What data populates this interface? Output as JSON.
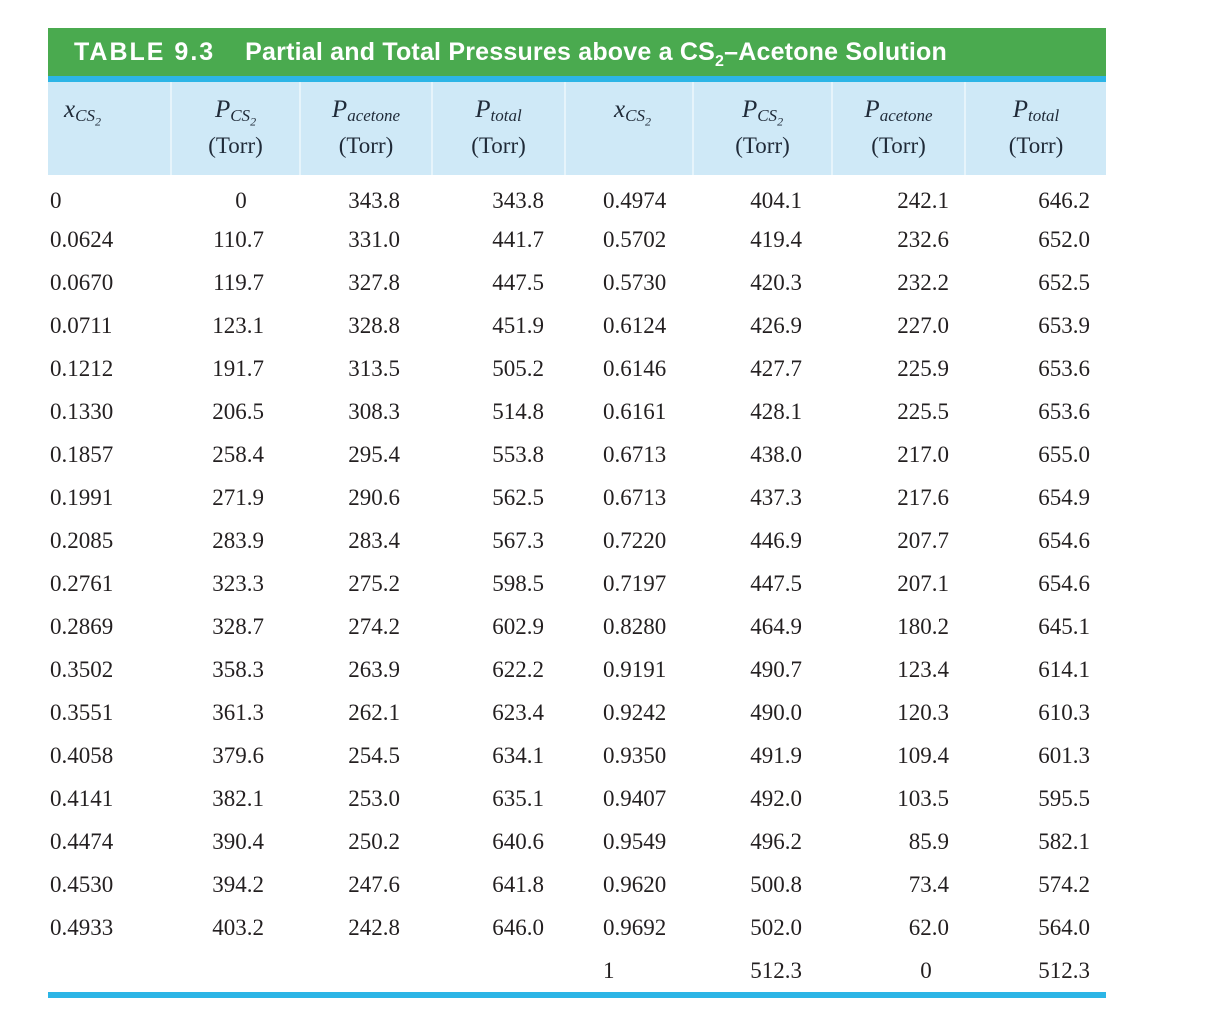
{
  "table": {
    "label": "TABLE 9.3",
    "title_pre": "Partial and Total Pressures above a CS",
    "title_sub": "2",
    "title_post": "–Acetone Solution",
    "columns": [
      {
        "var": "x",
        "sub": "CS",
        "subsub": "2",
        "unit": ""
      },
      {
        "var": "P",
        "sub": "CS",
        "subsub": "2",
        "unit": "(Torr)"
      },
      {
        "var": "P",
        "sub": "acetone",
        "subsub": "",
        "unit": "(Torr)"
      },
      {
        "var": "P",
        "sub": "total",
        "subsub": "",
        "unit": "(Torr)"
      },
      {
        "var": "x",
        "sub": "CS",
        "subsub": "2",
        "unit": ""
      },
      {
        "var": "P",
        "sub": "CS",
        "subsub": "2",
        "unit": "(Torr)"
      },
      {
        "var": "P",
        "sub": "acetone",
        "subsub": "",
        "unit": "(Torr)"
      },
      {
        "var": "P",
        "sub": "total",
        "subsub": "",
        "unit": "(Torr)"
      }
    ],
    "rows": [
      [
        "0",
        "0",
        "343.8",
        "343.8",
        "0.4974",
        "404.1",
        "242.1",
        "646.2"
      ],
      [
        "0.0624",
        "110.7",
        "331.0",
        "441.7",
        "0.5702",
        "419.4",
        "232.6",
        "652.0"
      ],
      [
        "0.0670",
        "119.7",
        "327.8",
        "447.5",
        "0.5730",
        "420.3",
        "232.2",
        "652.5"
      ],
      [
        "0.0711",
        "123.1",
        "328.8",
        "451.9",
        "0.6124",
        "426.9",
        "227.0",
        "653.9"
      ],
      [
        "0.1212",
        "191.7",
        "313.5",
        "505.2",
        "0.6146",
        "427.7",
        "225.9",
        "653.6"
      ],
      [
        "0.1330",
        "206.5",
        "308.3",
        "514.8",
        "0.6161",
        "428.1",
        "225.5",
        "653.6"
      ],
      [
        "0.1857",
        "258.4",
        "295.4",
        "553.8",
        "0.6713",
        "438.0",
        "217.0",
        "655.0"
      ],
      [
        "0.1991",
        "271.9",
        "290.6",
        "562.5",
        "0.6713",
        "437.3",
        "217.6",
        "654.9"
      ],
      [
        "0.2085",
        "283.9",
        "283.4",
        "567.3",
        "0.7220",
        "446.9",
        "207.7",
        "654.6"
      ],
      [
        "0.2761",
        "323.3",
        "275.2",
        "598.5",
        "0.7197",
        "447.5",
        "207.1",
        "654.6"
      ],
      [
        "0.2869",
        "328.7",
        "274.2",
        "602.9",
        "0.8280",
        "464.9",
        "180.2",
        "645.1"
      ],
      [
        "0.3502",
        "358.3",
        "263.9",
        "622.2",
        "0.9191",
        "490.7",
        "123.4",
        "614.1"
      ],
      [
        "0.3551",
        "361.3",
        "262.1",
        "623.4",
        "0.9242",
        "490.0",
        "120.3",
        "610.3"
      ],
      [
        "0.4058",
        "379.6",
        "254.5",
        "634.1",
        "0.9350",
        "491.9",
        "109.4",
        "601.3"
      ],
      [
        "0.4141",
        "382.1",
        "253.0",
        "635.1",
        "0.9407",
        "492.0",
        "103.5",
        "595.5"
      ],
      [
        "0.4474",
        "390.4",
        "250.2",
        "640.6",
        "0.9549",
        "496.2",
        "85.9",
        "582.1"
      ],
      [
        "0.4530",
        "394.2",
        "247.6",
        "641.8",
        "0.9620",
        "500.8",
        "73.4",
        "574.2"
      ],
      [
        "0.4933",
        "403.2",
        "242.8",
        "646.0",
        "0.9692",
        "502.0",
        "62.0",
        "564.0"
      ],
      [
        "",
        "",
        "",
        "",
        "1",
        "512.3",
        "0",
        "512.3"
      ]
    ]
  },
  "colors": {
    "banner_green": "#4aaa4f",
    "rule_cyan": "#2cb5e6",
    "band_blue": "#cfe9f7",
    "divider": "#e6f4fb",
    "data_text": "#231f20",
    "header_text": "#1f2a38",
    "title_text": "#ffffff"
  }
}
